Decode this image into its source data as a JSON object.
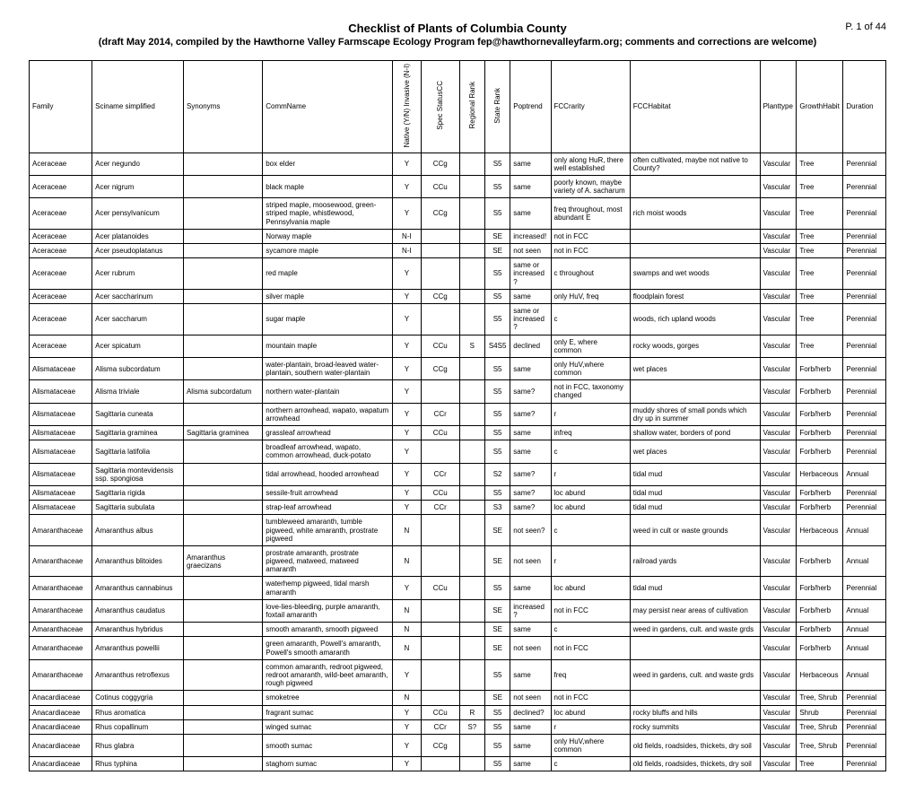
{
  "page": {
    "title": "Checklist of Plants of Columbia County",
    "subtitle": "(draft May 2014, compiled by the Hawthorne Valley Farmscape Ecology Program fep@hawthornevalleyfarm.org; comments and corrections are welcome)",
    "page_label": "P. 1 of 44"
  },
  "columns": [
    "Family",
    "Sciname simplified",
    "Synonyms",
    "CommName",
    "Native (Y/N) Invasive (N-I)",
    "Spec StatusCC",
    "Regional Rank",
    "State Rank",
    "Poptrend",
    "FCCrarity",
    "FCCHabitat",
    "Planttype",
    "GrowthHabit",
    "Duration"
  ],
  "rotated": [
    false,
    false,
    false,
    false,
    true,
    true,
    true,
    true,
    false,
    false,
    false,
    false,
    false,
    false
  ],
  "centered_cols": [
    4,
    5,
    6,
    7
  ],
  "rows": [
    [
      "Aceraceae",
      "Acer negundo",
      "",
      "box elder",
      "Y",
      "CCg",
      "",
      "S5",
      "same",
      "only along HuR, there well established",
      "often cultivated, maybe not native to County?",
      "Vascular",
      "Tree",
      "Perennial"
    ],
    [
      "Aceraceae",
      "Acer nigrum",
      "",
      "black maple",
      "Y",
      "CCu",
      "",
      "S5",
      "same",
      "poorly known, maybe variety of A. sacharum",
      "",
      "Vascular",
      "Tree",
      "Perennial"
    ],
    [
      "Aceraceae",
      "Acer pensylvanicum",
      "",
      "striped maple, moosewood, green-striped maple, whistlewood, Pennsylvania maple",
      "Y",
      "CCg",
      "",
      "S5",
      "same",
      "freq throughout, most abundant E",
      "rich moist woods",
      "Vascular",
      "Tree",
      "Perennial"
    ],
    [
      "Aceraceae",
      "Acer platanoides",
      "",
      "Norway maple",
      "N-I",
      "",
      "",
      "SE",
      "increased!",
      "not in FCC",
      "",
      "Vascular",
      "Tree",
      "Perennial"
    ],
    [
      "Aceraceae",
      "Acer pseudoplatanus",
      "",
      "sycamore maple",
      "N-I",
      "",
      "",
      "SE",
      "not seen",
      "not in FCC",
      "",
      "Vascular",
      "Tree",
      "Perennial"
    ],
    [
      "Aceraceae",
      "Acer rubrum",
      "",
      "red maple",
      "Y",
      "",
      "",
      "S5",
      "same or increased?",
      "c throughout",
      "swamps and wet woods",
      "Vascular",
      "Tree",
      "Perennial"
    ],
    [
      "Aceraceae",
      "Acer saccharinum",
      "",
      "silver maple",
      "Y",
      "CCg",
      "",
      "S5",
      "same",
      "only HuV, freq",
      "floodplain forest",
      "Vascular",
      "Tree",
      "Perennial"
    ],
    [
      "Aceraceae",
      "Acer saccharum",
      "",
      "sugar maple",
      "Y",
      "",
      "",
      "S5",
      "same or increased?",
      "c",
      "woods, rich upland woods",
      "Vascular",
      "Tree",
      "Perennial"
    ],
    [
      "Aceraceae",
      "Acer spicatum",
      "",
      "mountain maple",
      "Y",
      "CCu",
      "S",
      "S4S5",
      "declined",
      "only E, where common",
      "rocky woods, gorges",
      "Vascular",
      "Tree",
      "Perennial"
    ],
    [
      "Alismataceae",
      "Alisma subcordatum",
      "",
      "water-plantain, broad-leaved water-plantain, southern water-plantain",
      "Y",
      "CCg",
      "",
      "S5",
      "same",
      "only HuV,where common",
      "wet places",
      "Vascular",
      "Forb/herb",
      "Perennial"
    ],
    [
      "Alismataceae",
      "Alisma triviale",
      "Alisma subcordatum",
      "northern water-plantain",
      "Y",
      "",
      "",
      "S5",
      "same?",
      "not in FCC, taxonomy changed",
      "",
      "Vascular",
      "Forb/herb",
      "Perennial"
    ],
    [
      "Alismataceae",
      "Sagittaria cuneata",
      "",
      "northern arrowhead, wapato, wapatum arrowhead",
      "Y",
      "CCr",
      "",
      "S5",
      "same?",
      "r",
      "muddy shores of small ponds which dry up in summer",
      "Vascular",
      "Forb/herb",
      "Perennial"
    ],
    [
      "Alismataceae",
      "Sagittaria graminea",
      "Sagittaria graminea",
      "grassleaf arrowhead",
      "Y",
      "CCu",
      "",
      "S5",
      "same",
      "infreq",
      "shallow water, borders of pond",
      "Vascular",
      "Forb/herb",
      "Perennial"
    ],
    [
      "Alismataceae",
      "Sagittaria latifolia",
      "",
      "broadleaf arrowhead, wapato, common arrowhead, duck-potato",
      "Y",
      "",
      "",
      "S5",
      "same",
      "c",
      "wet places",
      "Vascular",
      "Forb/herb",
      "Perennial"
    ],
    [
      "Alismataceae",
      "Sagittaria montevidensis ssp. spongiosa",
      "",
      "tidal arrowhead, hooded arrowhead",
      "Y",
      "CCr",
      "",
      "S2",
      "same?",
      "r",
      "tidal mud",
      "Vascular",
      "Herbaceous",
      "Annual"
    ],
    [
      "Alismataceae",
      "Sagittaria rigida",
      "",
      "sessile-fruit arrowhead",
      "Y",
      "CCu",
      "",
      "S5",
      "same?",
      "loc abund",
      "tidal mud",
      "Vascular",
      "Forb/herb",
      "Perennial"
    ],
    [
      "Alismataceae",
      "Sagittaria subulata",
      "",
      "strap-leaf arrowhead",
      "Y",
      "CCr",
      "",
      "S3",
      "same?",
      "loc abund",
      "tidal mud",
      "Vascular",
      "Forb/herb",
      "Perennial"
    ],
    [
      "Amaranthaceae",
      "Amaranthus albus",
      "",
      "tumbleweed amaranth, tumble pigweed, white amaranth, prostrate pigweed",
      "N",
      "",
      "",
      "SE",
      "not seen?",
      "c",
      "weed in cult or waste grounds",
      "Vascular",
      "Herbaceous",
      "Annual"
    ],
    [
      "Amaranthaceae",
      "Amaranthus blitoides",
      "Amaranthus graecizans",
      "prostrate amaranth, prostrate pigweed, matweed, matweed amaranth",
      "N",
      "",
      "",
      "SE",
      "not seen",
      "r",
      "railroad yards",
      "Vascular",
      "Forb/herb",
      "Annual"
    ],
    [
      "Amaranthaceae",
      "Amaranthus cannabinus",
      "",
      "waterhemp pigweed, tidal marsh amaranth",
      "Y",
      "CCu",
      "",
      "S5",
      "same",
      "loc abund",
      "tidal mud",
      "Vascular",
      "Forb/herb",
      "Perennial"
    ],
    [
      "Amaranthaceae",
      "Amaranthus caudatus",
      "",
      "love-lies-bleeding, purple amaranth, foxtail amaranth",
      "N",
      "",
      "",
      "SE",
      "increased?",
      "not in FCC",
      "may persist near areas of cultivation",
      "Vascular",
      "Forb/herb",
      "Annual"
    ],
    [
      "Amaranthaceae",
      "Amaranthus hybridus",
      "",
      "smooth amaranth, smooth pigweed",
      "N",
      "",
      "",
      "SE",
      "same",
      "c",
      "weed in gardens, cult. and waste grds",
      "Vascular",
      "Forb/herb",
      "Annual"
    ],
    [
      "Amaranthaceae",
      "Amaranthus powellii",
      "",
      "green amaranth, Powell's amaranth, Powell's smooth amaranth",
      "N",
      "",
      "",
      "SE",
      "not seen",
      "not in FCC",
      "",
      "Vascular",
      "Forb/herb",
      "Annual"
    ],
    [
      "Amaranthaceae",
      "Amaranthus retroflexus",
      "",
      "common amaranth, redroot pigweed, redroot amaranth, wild-beet amaranth, rough pigweed",
      "Y",
      "",
      "",
      "S5",
      "same",
      "freq",
      "weed in gardens, cult. and waste grds",
      "Vascular",
      "Herbaceous",
      "Annual"
    ],
    [
      "Anacardiaceae",
      "Cotinus coggygria",
      "",
      "smoketree",
      "N",
      "",
      "",
      "SE",
      "not seen",
      "not in FCC",
      "",
      "Vascular",
      "Tree, Shrub",
      "Perennial"
    ],
    [
      "Anacardiaceae",
      "Rhus aromatica",
      "",
      "fragrant sumac",
      "Y",
      "CCu",
      "R",
      "S5",
      "declined?",
      "loc abund",
      "rocky bluffs and hills",
      "Vascular",
      "Shrub",
      "Perennial"
    ],
    [
      "Anacardiaceae",
      "Rhus copallinum",
      "",
      "winged sumac",
      "Y",
      "CCr",
      "S?",
      "S5",
      "same",
      "r",
      "rocky summits",
      "Vascular",
      "Tree, Shrub",
      "Perennial"
    ],
    [
      "Anacardiaceae",
      "Rhus glabra",
      "",
      "smooth sumac",
      "Y",
      "CCg",
      "",
      "S5",
      "same",
      "only HuV,where common",
      "old fields, roadsides, thickets, dry soil",
      "Vascular",
      "Tree, Shrub",
      "Perennial"
    ],
    [
      "Anacardiaceae",
      "Rhus typhina",
      "",
      "staghorn sumac",
      "Y",
      "",
      "",
      "S5",
      "same",
      "c",
      "old fields, roadsides, thickets, dry soil",
      "Vascular",
      "Tree",
      "Perennial"
    ]
  ]
}
